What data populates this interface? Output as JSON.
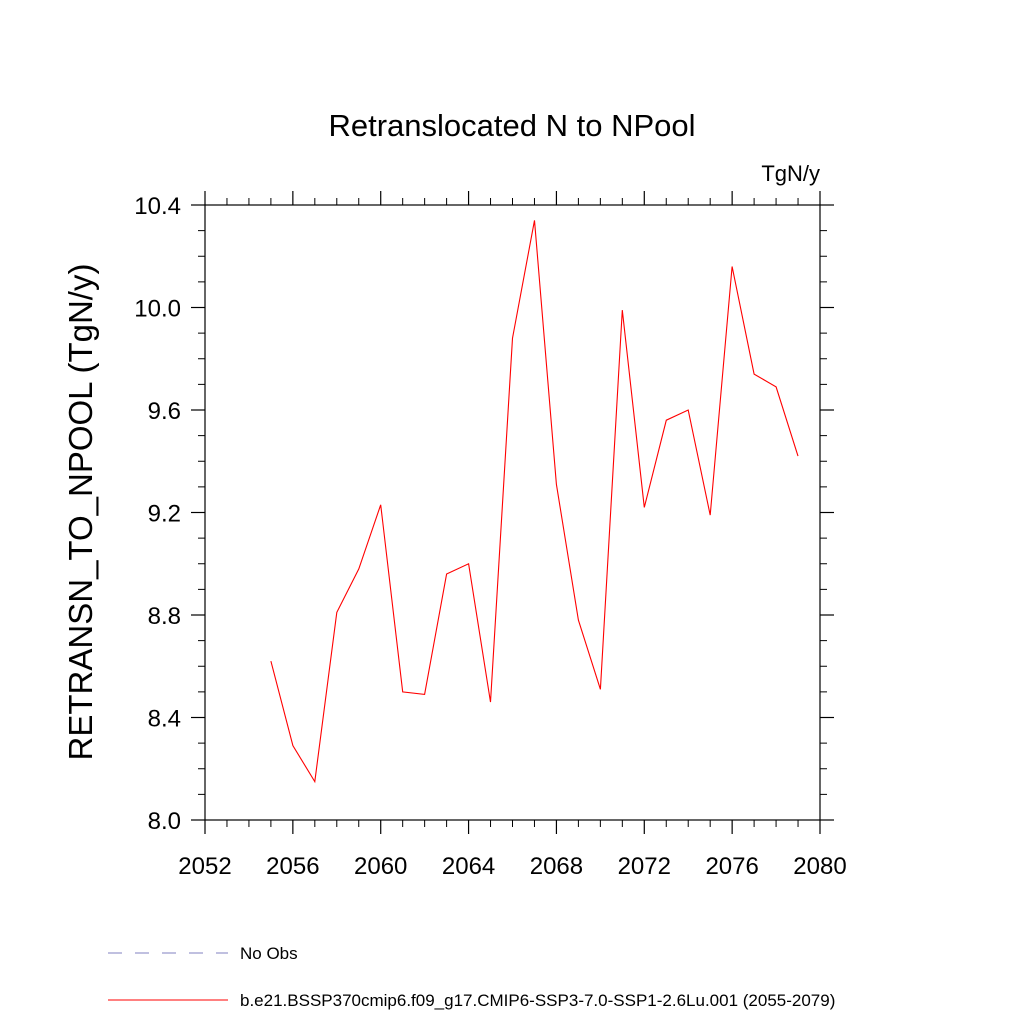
{
  "chart_data": {
    "type": "line",
    "title": "Retranslocated N to NPool",
    "units_label": "TgN/y",
    "ylabel": "RETRANSN_TO_NPOOL  (TgN/y)",
    "xlabel": "",
    "xlim": [
      2052,
      2080
    ],
    "ylim": [
      8.0,
      10.4
    ],
    "x_ticks": [
      2052,
      2056,
      2060,
      2064,
      2068,
      2072,
      2076,
      2080
    ],
    "x_tick_labels": [
      "2052",
      "2056",
      "2060",
      "2064",
      "2068",
      "2072",
      "2076",
      "2080"
    ],
    "y_ticks": [
      8.0,
      8.4,
      8.8,
      9.2,
      9.6,
      10.0,
      10.4
    ],
    "y_tick_labels": [
      "8.0",
      "8.4",
      "8.8",
      "9.2",
      "9.6",
      "10.0",
      "10.4"
    ],
    "grid": false,
    "series": [
      {
        "name": "b.e21.BSSP370cmip6.f09_g17.CMIP6-SSP3-7.0-SSP1-2.6Lu.001 (2055-2079)",
        "color": "#ff0000",
        "x": [
          2055,
          2056,
          2057,
          2058,
          2059,
          2060,
          2061,
          2062,
          2063,
          2064,
          2065,
          2066,
          2067,
          2068,
          2069,
          2070,
          2071,
          2072,
          2073,
          2074,
          2075,
          2076,
          2077,
          2078,
          2079
        ],
        "values": [
          8.62,
          8.29,
          8.15,
          8.81,
          8.98,
          9.23,
          8.5,
          8.49,
          8.96,
          9.0,
          8.46,
          9.88,
          10.34,
          9.31,
          8.78,
          8.51,
          9.99,
          9.22,
          9.56,
          9.6,
          9.19,
          10.16,
          9.74,
          9.69,
          9.42
        ]
      }
    ],
    "legend": {
      "position": "bottom-left",
      "entries": [
        {
          "label": "No Obs",
          "style": "dashed",
          "color": "#8080c0"
        },
        {
          "label": "b.e21.BSSP370cmip6.f09_g17.CMIP6-SSP3-7.0-SSP1-2.6Lu.001 (2055-2079)",
          "style": "solid",
          "color": "#ff0000"
        }
      ]
    }
  }
}
